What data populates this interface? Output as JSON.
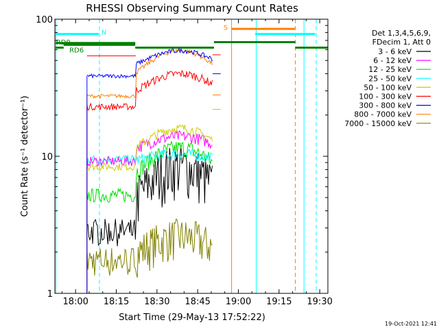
{
  "chart_data": {
    "type": "line",
    "title": "RHESSI Observing Summary Count Rates",
    "xlabel": "Start Time (29-May-13 17:52:22)",
    "ylabel": "Count Rate (s⁻¹ detector⁻¹)",
    "y_scale": "log",
    "ylim": [
      1,
      100
    ],
    "xlim": [
      "17:52:22",
      "19:33:00"
    ],
    "x_ticks": [
      "18:00",
      "18:15",
      "18:30",
      "18:45",
      "19:00",
      "19:15",
      "19:30"
    ],
    "y_ticks": [
      "1",
      "10",
      "100"
    ],
    "legend_position": "right",
    "legend_header": [
      "Det 1,3,4,5,6,9,",
      "FDecim 1, Att 0"
    ],
    "series": [
      {
        "name": "3 - 6 keV",
        "color": "#000000"
      },
      {
        "name": "6 - 12 keV",
        "color": "#ff00ff"
      },
      {
        "name": "12 - 25 keV",
        "color": "#00dd00"
      },
      {
        "name": "25 - 50 keV",
        "color": "#00ffff"
      },
      {
        "name": "50 - 100 keV",
        "color": "#cccc00"
      },
      {
        "name": "100 - 300 keV",
        "color": "#ff0000"
      },
      {
        "name": "300 - 800 keV",
        "color": "#0000ff"
      },
      {
        "name": "800 - 7000 keV",
        "color": "#ff8000"
      },
      {
        "name": "7000 - 15000 keV",
        "color": "#808000"
      }
    ],
    "flags": [
      {
        "label": "RD0",
        "color": "#008000"
      },
      {
        "label": "RD6",
        "color": "#008000"
      },
      {
        "label": "N",
        "color": "#00ffff"
      },
      {
        "label": "S",
        "color": "#ff8000"
      }
    ],
    "timestamp": "19-Oct-2021 12:41"
  }
}
